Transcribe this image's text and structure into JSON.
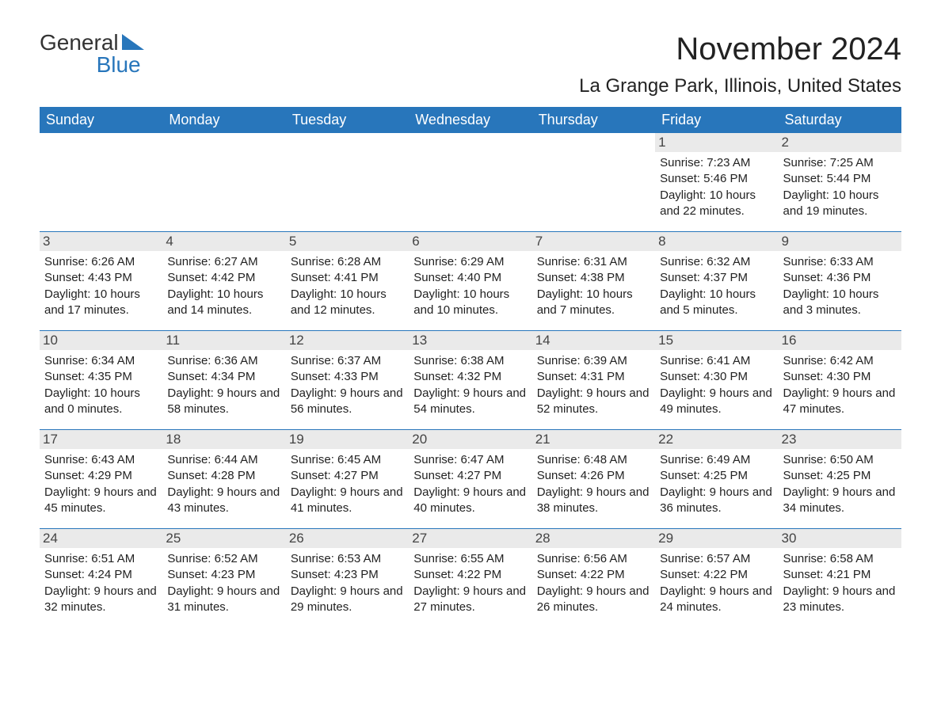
{
  "logo": {
    "top": "General",
    "bottom": "Blue"
  },
  "title": "November 2024",
  "location": "La Grange Park, Illinois, United States",
  "colors": {
    "header_bg": "#2876bb",
    "header_text": "#ffffff",
    "date_bg": "#eaeaea",
    "text": "#222222",
    "background": "#ffffff"
  },
  "day_headers": [
    "Sunday",
    "Monday",
    "Tuesday",
    "Wednesday",
    "Thursday",
    "Friday",
    "Saturday"
  ],
  "weeks": [
    [
      {
        "date": "",
        "sunrise": "",
        "sunset": "",
        "daylight": ""
      },
      {
        "date": "",
        "sunrise": "",
        "sunset": "",
        "daylight": ""
      },
      {
        "date": "",
        "sunrise": "",
        "sunset": "",
        "daylight": ""
      },
      {
        "date": "",
        "sunrise": "",
        "sunset": "",
        "daylight": ""
      },
      {
        "date": "",
        "sunrise": "",
        "sunset": "",
        "daylight": ""
      },
      {
        "date": "1",
        "sunrise": "Sunrise: 7:23 AM",
        "sunset": "Sunset: 5:46 PM",
        "daylight": "Daylight: 10 hours and 22 minutes."
      },
      {
        "date": "2",
        "sunrise": "Sunrise: 7:25 AM",
        "sunset": "Sunset: 5:44 PM",
        "daylight": "Daylight: 10 hours and 19 minutes."
      }
    ],
    [
      {
        "date": "3",
        "sunrise": "Sunrise: 6:26 AM",
        "sunset": "Sunset: 4:43 PM",
        "daylight": "Daylight: 10 hours and 17 minutes."
      },
      {
        "date": "4",
        "sunrise": "Sunrise: 6:27 AM",
        "sunset": "Sunset: 4:42 PM",
        "daylight": "Daylight: 10 hours and 14 minutes."
      },
      {
        "date": "5",
        "sunrise": "Sunrise: 6:28 AM",
        "sunset": "Sunset: 4:41 PM",
        "daylight": "Daylight: 10 hours and 12 minutes."
      },
      {
        "date": "6",
        "sunrise": "Sunrise: 6:29 AM",
        "sunset": "Sunset: 4:40 PM",
        "daylight": "Daylight: 10 hours and 10 minutes."
      },
      {
        "date": "7",
        "sunrise": "Sunrise: 6:31 AM",
        "sunset": "Sunset: 4:38 PM",
        "daylight": "Daylight: 10 hours and 7 minutes."
      },
      {
        "date": "8",
        "sunrise": "Sunrise: 6:32 AM",
        "sunset": "Sunset: 4:37 PM",
        "daylight": "Daylight: 10 hours and 5 minutes."
      },
      {
        "date": "9",
        "sunrise": "Sunrise: 6:33 AM",
        "sunset": "Sunset: 4:36 PM",
        "daylight": "Daylight: 10 hours and 3 minutes."
      }
    ],
    [
      {
        "date": "10",
        "sunrise": "Sunrise: 6:34 AM",
        "sunset": "Sunset: 4:35 PM",
        "daylight": "Daylight: 10 hours and 0 minutes."
      },
      {
        "date": "11",
        "sunrise": "Sunrise: 6:36 AM",
        "sunset": "Sunset: 4:34 PM",
        "daylight": "Daylight: 9 hours and 58 minutes."
      },
      {
        "date": "12",
        "sunrise": "Sunrise: 6:37 AM",
        "sunset": "Sunset: 4:33 PM",
        "daylight": "Daylight: 9 hours and 56 minutes."
      },
      {
        "date": "13",
        "sunrise": "Sunrise: 6:38 AM",
        "sunset": "Sunset: 4:32 PM",
        "daylight": "Daylight: 9 hours and 54 minutes."
      },
      {
        "date": "14",
        "sunrise": "Sunrise: 6:39 AM",
        "sunset": "Sunset: 4:31 PM",
        "daylight": "Daylight: 9 hours and 52 minutes."
      },
      {
        "date": "15",
        "sunrise": "Sunrise: 6:41 AM",
        "sunset": "Sunset: 4:30 PM",
        "daylight": "Daylight: 9 hours and 49 minutes."
      },
      {
        "date": "16",
        "sunrise": "Sunrise: 6:42 AM",
        "sunset": "Sunset: 4:30 PM",
        "daylight": "Daylight: 9 hours and 47 minutes."
      }
    ],
    [
      {
        "date": "17",
        "sunrise": "Sunrise: 6:43 AM",
        "sunset": "Sunset: 4:29 PM",
        "daylight": "Daylight: 9 hours and 45 minutes."
      },
      {
        "date": "18",
        "sunrise": "Sunrise: 6:44 AM",
        "sunset": "Sunset: 4:28 PM",
        "daylight": "Daylight: 9 hours and 43 minutes."
      },
      {
        "date": "19",
        "sunrise": "Sunrise: 6:45 AM",
        "sunset": "Sunset: 4:27 PM",
        "daylight": "Daylight: 9 hours and 41 minutes."
      },
      {
        "date": "20",
        "sunrise": "Sunrise: 6:47 AM",
        "sunset": "Sunset: 4:27 PM",
        "daylight": "Daylight: 9 hours and 40 minutes."
      },
      {
        "date": "21",
        "sunrise": "Sunrise: 6:48 AM",
        "sunset": "Sunset: 4:26 PM",
        "daylight": "Daylight: 9 hours and 38 minutes."
      },
      {
        "date": "22",
        "sunrise": "Sunrise: 6:49 AM",
        "sunset": "Sunset: 4:25 PM",
        "daylight": "Daylight: 9 hours and 36 minutes."
      },
      {
        "date": "23",
        "sunrise": "Sunrise: 6:50 AM",
        "sunset": "Sunset: 4:25 PM",
        "daylight": "Daylight: 9 hours and 34 minutes."
      }
    ],
    [
      {
        "date": "24",
        "sunrise": "Sunrise: 6:51 AM",
        "sunset": "Sunset: 4:24 PM",
        "daylight": "Daylight: 9 hours and 32 minutes."
      },
      {
        "date": "25",
        "sunrise": "Sunrise: 6:52 AM",
        "sunset": "Sunset: 4:23 PM",
        "daylight": "Daylight: 9 hours and 31 minutes."
      },
      {
        "date": "26",
        "sunrise": "Sunrise: 6:53 AM",
        "sunset": "Sunset: 4:23 PM",
        "daylight": "Daylight: 9 hours and 29 minutes."
      },
      {
        "date": "27",
        "sunrise": "Sunrise: 6:55 AM",
        "sunset": "Sunset: 4:22 PM",
        "daylight": "Daylight: 9 hours and 27 minutes."
      },
      {
        "date": "28",
        "sunrise": "Sunrise: 6:56 AM",
        "sunset": "Sunset: 4:22 PM",
        "daylight": "Daylight: 9 hours and 26 minutes."
      },
      {
        "date": "29",
        "sunrise": "Sunrise: 6:57 AM",
        "sunset": "Sunset: 4:22 PM",
        "daylight": "Daylight: 9 hours and 24 minutes."
      },
      {
        "date": "30",
        "sunrise": "Sunrise: 6:58 AM",
        "sunset": "Sunset: 4:21 PM",
        "daylight": "Daylight: 9 hours and 23 minutes."
      }
    ]
  ]
}
